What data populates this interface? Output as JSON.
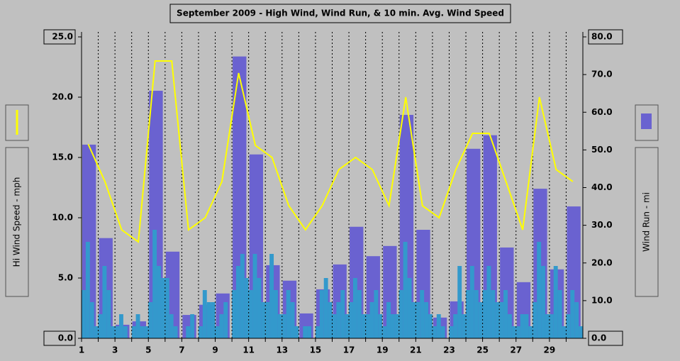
{
  "chart_data": [
    {
      "type": "combo",
      "title": "September 2009 - High Wind, Wind Run, & 10 min. Avg. Wind Speed",
      "y_label": "Hi Wind Speed - mph",
      "y2_label": "Wind Run - mi",
      "categories": [
        "1",
        null,
        "3",
        null,
        "5",
        null,
        "7",
        null,
        "9",
        null,
        "11",
        null,
        "13",
        null,
        "15",
        null,
        "17",
        null,
        "19",
        null,
        "21",
        null,
        "23",
        null,
        "25",
        null,
        "27",
        null,
        "29",
        null
      ],
      "series": [
        {
          "type": "bar",
          "axis": "y2",
          "color": "#6a62d0",
          "values": [
            51.4,
            26.6,
            3.6,
            4.5,
            65.7,
            23.0,
            6.2,
            8.9,
            11.9,
            74.8,
            48.8,
            19.4,
            15.3,
            6.6,
            13.0,
            19.6,
            29.6,
            21.8,
            24.5,
            59.3,
            28.8,
            5.5,
            9.8,
            50.3,
            53.9,
            24.1,
            14.9,
            39.7,
            18.3,
            35.0
          ]
        },
        {
          "type": "line",
          "color": "#ffff00",
          "values": [
            16.1,
            13.0,
            9.0,
            8.0,
            23.0,
            23.0,
            9.0,
            10.0,
            13.0,
            22.0,
            16.0,
            15.0,
            11.0,
            9.0,
            11.0,
            14.0,
            15.0,
            14.0,
            11.0,
            20.0,
            11.0,
            10.0,
            14.0,
            17.0,
            17.0,
            13.0,
            9.0,
            20.0,
            14.0,
            13.0
          ]
        }
      ],
      "ylim": [
        0,
        25
      ],
      "yticks": [
        {
          "value": 0,
          "label": "0.0"
        },
        {
          "value": 5,
          "label": "5.0"
        },
        {
          "value": 10,
          "label": "10.0"
        },
        {
          "value": 15,
          "label": "15.0"
        },
        {
          "value": 20,
          "label": "20.0"
        },
        {
          "value": 25,
          "label": "25.0"
        }
      ],
      "y2lim": [
        0,
        80
      ],
      "y2ticks": [
        {
          "value": 0,
          "label": "0.0"
        },
        {
          "value": 10,
          "label": "10.0"
        },
        {
          "value": 20,
          "label": "20.0"
        },
        {
          "value": 30,
          "label": "30.0"
        },
        {
          "value": 40,
          "label": "40.0"
        },
        {
          "value": 50,
          "label": "50.0"
        },
        {
          "value": 60,
          "label": "60.0"
        },
        {
          "value": 70,
          "label": "70.0"
        },
        {
          "value": 80,
          "label": "80.0"
        }
      ],
      "grid": true
    },
    {
      "type": "bar",
      "color": "#3399cc",
      "xlim": [
        1,
        31
      ],
      "ylim": [
        0,
        25
      ],
      "x": [
        1,
        1.25,
        1.5,
        1.75,
        2,
        2.25,
        2.5,
        2.75,
        3,
        3.25,
        3.5,
        3.75,
        4,
        4.25,
        4.5,
        4.75,
        5,
        5.25,
        5.5,
        5.75,
        6,
        6.25,
        6.5,
        6.75,
        7,
        7.25,
        7.5,
        7.75,
        8,
        8.25,
        8.5,
        8.75,
        9,
        9.25,
        9.5,
        9.75,
        10,
        10.25,
        10.5,
        10.75,
        11,
        11.25,
        11.5,
        11.75,
        12,
        12.25,
        12.5,
        12.75,
        13,
        13.25,
        13.5,
        13.75,
        14,
        14.25,
        14.5,
        14.75,
        15,
        15.25,
        15.5,
        15.75,
        16,
        16.25,
        16.5,
        16.75,
        17,
        17.25,
        17.5,
        17.75,
        18,
        18.25,
        18.5,
        18.75,
        19,
        19.25,
        19.5,
        19.75,
        20,
        20.25,
        20.5,
        20.75,
        21,
        21.25,
        21.5,
        21.75,
        22,
        22.25,
        22.5,
        22.75,
        23,
        23.25,
        23.5,
        23.75,
        24,
        24.25,
        24.5,
        24.75,
        25,
        25.25,
        25.5,
        25.75,
        26,
        26.25,
        26.5,
        26.75,
        27,
        27.25,
        27.5,
        27.75,
        28,
        28.25,
        28.5,
        28.75,
        29,
        29.25,
        29.5,
        29.75,
        30,
        30.25,
        30.5,
        30.75
      ],
      "values": [
        4,
        8,
        3,
        1,
        2,
        6,
        4,
        1,
        1,
        2,
        1,
        0,
        1,
        2,
        1,
        1,
        3,
        9,
        6,
        5,
        5,
        2,
        1,
        0,
        0,
        1,
        2,
        0,
        1,
        4,
        3,
        3,
        1,
        2,
        3,
        0,
        4,
        6,
        7,
        5,
        4,
        7,
        5,
        3,
        3,
        7,
        4,
        2,
        2,
        4,
        3,
        1,
        0,
        1,
        1,
        0,
        1,
        4,
        5,
        3,
        2,
        3,
        4,
        2,
        3,
        5,
        4,
        2,
        2,
        3,
        4,
        2,
        1,
        3,
        2,
        2,
        4,
        8,
        5,
        3,
        3,
        4,
        3,
        2,
        1,
        2,
        1,
        0,
        1,
        2,
        6,
        2,
        4,
        6,
        4,
        3,
        4,
        6,
        4,
        3,
        3,
        4,
        2,
        1,
        1,
        2,
        2,
        1,
        3,
        8,
        6,
        2,
        2,
        6,
        4,
        1,
        2,
        4,
        3,
        1
      ]
    }
  ]
}
